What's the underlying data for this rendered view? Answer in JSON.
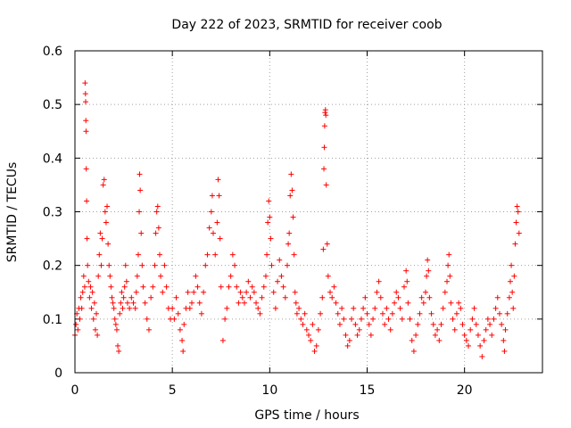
{
  "chart_data": {
    "type": "scatter",
    "title": "Day 222 of 2023, SRMTID for receiver coob",
    "xlabel": "GPS time / hours",
    "ylabel": "SRMTID / TECUs",
    "xlim": [
      0,
      24
    ],
    "ylim": [
      0,
      0.6
    ],
    "xticks": [
      0,
      5,
      10,
      15,
      20
    ],
    "xtick_labels": [
      "0",
      "5",
      "10",
      "15",
      "20"
    ],
    "yticks": [
      0,
      0.1,
      0.2,
      0.3,
      0.4,
      0.5,
      0.6
    ],
    "ytick_labels": [
      "0",
      "0.1",
      "0.2",
      "0.3",
      "0.4",
      "0.5",
      "0.6"
    ],
    "grid": true,
    "marker": "+",
    "color": "#ff0000",
    "series": [
      {
        "name": "SRMTID",
        "points": [
          [
            0.0,
            0.07
          ],
          [
            0.05,
            0.09
          ],
          [
            0.1,
            0.11
          ],
          [
            0.15,
            0.08
          ],
          [
            0.2,
            0.12
          ],
          [
            0.25,
            0.1
          ],
          [
            0.3,
            0.14
          ],
          [
            0.35,
            0.12
          ],
          [
            0.4,
            0.15
          ],
          [
            0.45,
            0.18
          ],
          [
            0.5,
            0.16
          ],
          [
            0.52,
            0.54
          ],
          [
            0.54,
            0.52
          ],
          [
            0.55,
            0.505
          ],
          [
            0.56,
            0.47
          ],
          [
            0.57,
            0.45
          ],
          [
            0.58,
            0.38
          ],
          [
            0.6,
            0.32
          ],
          [
            0.62,
            0.25
          ],
          [
            0.65,
            0.2
          ],
          [
            0.7,
            0.17
          ],
          [
            0.75,
            0.14
          ],
          [
            0.8,
            0.16
          ],
          [
            0.85,
            0.12
          ],
          [
            0.9,
            0.15
          ],
          [
            0.95,
            0.1
          ],
          [
            1.0,
            0.13
          ],
          [
            1.05,
            0.08
          ],
          [
            1.1,
            0.11
          ],
          [
            1.15,
            0.07
          ],
          [
            1.2,
            0.18
          ],
          [
            1.25,
            0.22
          ],
          [
            1.3,
            0.26
          ],
          [
            1.35,
            0.2
          ],
          [
            1.4,
            0.25
          ],
          [
            1.45,
            0.35
          ],
          [
            1.5,
            0.36
          ],
          [
            1.55,
            0.3
          ],
          [
            1.6,
            0.28
          ],
          [
            1.65,
            0.31
          ],
          [
            1.7,
            0.24
          ],
          [
            1.75,
            0.2
          ],
          [
            1.8,
            0.18
          ],
          [
            1.85,
            0.16
          ],
          [
            1.9,
            0.14
          ],
          [
            1.95,
            0.13
          ],
          [
            2.0,
            0.12
          ],
          [
            2.05,
            0.1
          ],
          [
            2.1,
            0.09
          ],
          [
            2.15,
            0.08
          ],
          [
            2.2,
            0.05
          ],
          [
            2.25,
            0.04
          ],
          [
            2.3,
            0.11
          ],
          [
            2.35,
            0.13
          ],
          [
            2.4,
            0.15
          ],
          [
            2.45,
            0.12
          ],
          [
            2.5,
            0.14
          ],
          [
            2.55,
            0.16
          ],
          [
            2.6,
            0.2
          ],
          [
            2.65,
            0.17
          ],
          [
            2.7,
            0.13
          ],
          [
            2.8,
            0.12
          ],
          [
            2.9,
            0.14
          ],
          [
            3.0,
            0.13
          ],
          [
            3.1,
            0.12
          ],
          [
            3.15,
            0.15
          ],
          [
            3.2,
            0.18
          ],
          [
            3.25,
            0.22
          ],
          [
            3.3,
            0.3
          ],
          [
            3.32,
            0.37
          ],
          [
            3.35,
            0.34
          ],
          [
            3.4,
            0.26
          ],
          [
            3.45,
            0.2
          ],
          [
            3.5,
            0.16
          ],
          [
            3.6,
            0.13
          ],
          [
            3.7,
            0.1
          ],
          [
            3.8,
            0.08
          ],
          [
            3.9,
            0.14
          ],
          [
            4.0,
            0.16
          ],
          [
            4.1,
            0.2
          ],
          [
            4.15,
            0.26
          ],
          [
            4.2,
            0.3
          ],
          [
            4.25,
            0.31
          ],
          [
            4.3,
            0.27
          ],
          [
            4.35,
            0.22
          ],
          [
            4.4,
            0.18
          ],
          [
            4.5,
            0.15
          ],
          [
            4.6,
            0.2
          ],
          [
            4.7,
            0.16
          ],
          [
            4.8,
            0.12
          ],
          [
            4.9,
            0.1
          ],
          [
            5.0,
            0.12
          ],
          [
            5.1,
            0.1
          ],
          [
            5.2,
            0.14
          ],
          [
            5.3,
            0.11
          ],
          [
            5.4,
            0.08
          ],
          [
            5.5,
            0.06
          ],
          [
            5.55,
            0.04
          ],
          [
            5.6,
            0.09
          ],
          [
            5.7,
            0.12
          ],
          [
            5.8,
            0.15
          ],
          [
            5.9,
            0.12
          ],
          [
            6.0,
            0.13
          ],
          [
            6.1,
            0.15
          ],
          [
            6.2,
            0.18
          ],
          [
            6.3,
            0.16
          ],
          [
            6.4,
            0.13
          ],
          [
            6.5,
            0.11
          ],
          [
            6.6,
            0.15
          ],
          [
            6.7,
            0.2
          ],
          [
            6.8,
            0.22
          ],
          [
            6.9,
            0.27
          ],
          [
            7.0,
            0.3
          ],
          [
            7.05,
            0.33
          ],
          [
            7.1,
            0.26
          ],
          [
            7.2,
            0.22
          ],
          [
            7.3,
            0.28
          ],
          [
            7.35,
            0.36
          ],
          [
            7.4,
            0.33
          ],
          [
            7.45,
            0.25
          ],
          [
            7.5,
            0.16
          ],
          [
            7.6,
            0.06
          ],
          [
            7.7,
            0.1
          ],
          [
            7.8,
            0.12
          ],
          [
            7.9,
            0.16
          ],
          [
            8.0,
            0.18
          ],
          [
            8.1,
            0.22
          ],
          [
            8.2,
            0.2
          ],
          [
            8.3,
            0.16
          ],
          [
            8.4,
            0.13
          ],
          [
            8.5,
            0.15
          ],
          [
            8.6,
            0.14
          ],
          [
            8.7,
            0.13
          ],
          [
            8.8,
            0.15
          ],
          [
            8.9,
            0.17
          ],
          [
            9.0,
            0.14
          ],
          [
            9.1,
            0.16
          ],
          [
            9.2,
            0.15
          ],
          [
            9.3,
            0.13
          ],
          [
            9.4,
            0.12
          ],
          [
            9.5,
            0.11
          ],
          [
            9.6,
            0.14
          ],
          [
            9.7,
            0.16
          ],
          [
            9.8,
            0.18
          ],
          [
            9.85,
            0.22
          ],
          [
            9.9,
            0.28
          ],
          [
            9.95,
            0.32
          ],
          [
            10.0,
            0.29
          ],
          [
            10.05,
            0.25
          ],
          [
            10.1,
            0.2
          ],
          [
            10.2,
            0.15
          ],
          [
            10.3,
            0.12
          ],
          [
            10.4,
            0.17
          ],
          [
            10.5,
            0.21
          ],
          [
            10.6,
            0.18
          ],
          [
            10.7,
            0.16
          ],
          [
            10.8,
            0.14
          ],
          [
            10.9,
            0.2
          ],
          [
            10.95,
            0.24
          ],
          [
            11.0,
            0.26
          ],
          [
            11.05,
            0.33
          ],
          [
            11.1,
            0.37
          ],
          [
            11.15,
            0.34
          ],
          [
            11.2,
            0.29
          ],
          [
            11.25,
            0.22
          ],
          [
            11.3,
            0.15
          ],
          [
            11.35,
            0.13
          ],
          [
            11.4,
            0.11
          ],
          [
            11.5,
            0.12
          ],
          [
            11.6,
            0.1
          ],
          [
            11.7,
            0.09
          ],
          [
            11.8,
            0.11
          ],
          [
            11.9,
            0.08
          ],
          [
            12.0,
            0.07
          ],
          [
            12.1,
            0.06
          ],
          [
            12.2,
            0.09
          ],
          [
            12.3,
            0.04
          ],
          [
            12.4,
            0.05
          ],
          [
            12.5,
            0.08
          ],
          [
            12.6,
            0.11
          ],
          [
            12.7,
            0.14
          ],
          [
            12.75,
            0.23
          ],
          [
            12.78,
            0.38
          ],
          [
            12.8,
            0.42
          ],
          [
            12.82,
            0.46
          ],
          [
            12.84,
            0.485
          ],
          [
            12.86,
            0.49
          ],
          [
            12.88,
            0.48
          ],
          [
            12.9,
            0.35
          ],
          [
            12.95,
            0.24
          ],
          [
            13.0,
            0.18
          ],
          [
            13.1,
            0.15
          ],
          [
            13.2,
            0.14
          ],
          [
            13.3,
            0.16
          ],
          [
            13.4,
            0.13
          ],
          [
            13.5,
            0.11
          ],
          [
            13.6,
            0.09
          ],
          [
            13.7,
            0.12
          ],
          [
            13.8,
            0.1
          ],
          [
            13.9,
            0.07
          ],
          [
            14.0,
            0.05
          ],
          [
            14.1,
            0.06
          ],
          [
            14.2,
            0.1
          ],
          [
            14.3,
            0.12
          ],
          [
            14.4,
            0.09
          ],
          [
            14.5,
            0.07
          ],
          [
            14.6,
            0.08
          ],
          [
            14.7,
            0.1
          ],
          [
            14.8,
            0.12
          ],
          [
            14.9,
            0.14
          ],
          [
            15.0,
            0.11
          ],
          [
            15.1,
            0.09
          ],
          [
            15.2,
            0.07
          ],
          [
            15.3,
            0.1
          ],
          [
            15.4,
            0.12
          ],
          [
            15.5,
            0.15
          ],
          [
            15.6,
            0.17
          ],
          [
            15.7,
            0.14
          ],
          [
            15.8,
            0.11
          ],
          [
            15.9,
            0.09
          ],
          [
            16.0,
            0.12
          ],
          [
            16.1,
            0.1
          ],
          [
            16.2,
            0.08
          ],
          [
            16.3,
            0.11
          ],
          [
            16.4,
            0.13
          ],
          [
            16.5,
            0.15
          ],
          [
            16.6,
            0.14
          ],
          [
            16.7,
            0.12
          ],
          [
            16.8,
            0.1
          ],
          [
            16.9,
            0.16
          ],
          [
            17.0,
            0.19
          ],
          [
            17.05,
            0.17
          ],
          [
            17.1,
            0.13
          ],
          [
            17.2,
            0.1
          ],
          [
            17.3,
            0.06
          ],
          [
            17.4,
            0.04
          ],
          [
            17.5,
            0.07
          ],
          [
            17.6,
            0.09
          ],
          [
            17.7,
            0.11
          ],
          [
            17.8,
            0.14
          ],
          [
            17.9,
            0.13
          ],
          [
            18.0,
            0.15
          ],
          [
            18.05,
            0.18
          ],
          [
            18.1,
            0.21
          ],
          [
            18.15,
            0.19
          ],
          [
            18.2,
            0.14
          ],
          [
            18.3,
            0.11
          ],
          [
            18.4,
            0.09
          ],
          [
            18.5,
            0.07
          ],
          [
            18.6,
            0.08
          ],
          [
            18.7,
            0.06
          ],
          [
            18.8,
            0.09
          ],
          [
            18.9,
            0.12
          ],
          [
            19.0,
            0.15
          ],
          [
            19.1,
            0.17
          ],
          [
            19.15,
            0.2
          ],
          [
            19.2,
            0.22
          ],
          [
            19.25,
            0.18
          ],
          [
            19.3,
            0.13
          ],
          [
            19.4,
            0.1
          ],
          [
            19.5,
            0.08
          ],
          [
            19.6,
            0.11
          ],
          [
            19.7,
            0.13
          ],
          [
            19.8,
            0.12
          ],
          [
            19.9,
            0.09
          ],
          [
            20.0,
            0.07
          ],
          [
            20.1,
            0.06
          ],
          [
            20.2,
            0.05
          ],
          [
            20.3,
            0.08
          ],
          [
            20.4,
            0.1
          ],
          [
            20.5,
            0.12
          ],
          [
            20.6,
            0.09
          ],
          [
            20.7,
            0.07
          ],
          [
            20.8,
            0.05
          ],
          [
            20.9,
            0.03
          ],
          [
            21.0,
            0.06
          ],
          [
            21.1,
            0.08
          ],
          [
            21.2,
            0.1
          ],
          [
            21.3,
            0.09
          ],
          [
            21.4,
            0.07
          ],
          [
            21.5,
            0.1
          ],
          [
            21.6,
            0.12
          ],
          [
            21.7,
            0.14
          ],
          [
            21.8,
            0.11
          ],
          [
            21.9,
            0.09
          ],
          [
            22.0,
            0.06
          ],
          [
            22.05,
            0.04
          ],
          [
            22.1,
            0.08
          ],
          [
            22.2,
            0.11
          ],
          [
            22.3,
            0.14
          ],
          [
            22.35,
            0.17
          ],
          [
            22.4,
            0.2
          ],
          [
            22.45,
            0.15
          ],
          [
            22.5,
            0.12
          ],
          [
            22.55,
            0.18
          ],
          [
            22.6,
            0.24
          ],
          [
            22.65,
            0.28
          ],
          [
            22.7,
            0.31
          ],
          [
            22.75,
            0.3
          ],
          [
            22.8,
            0.26
          ]
        ]
      }
    ]
  }
}
